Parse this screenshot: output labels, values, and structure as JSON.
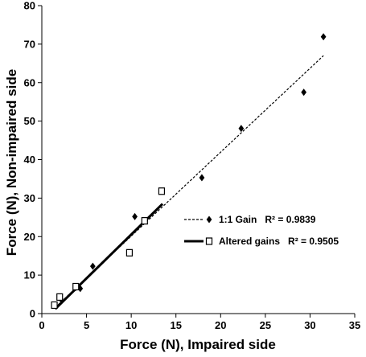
{
  "chart_data": {
    "type": "scatter",
    "title": "",
    "xlabel": "Force (N), Impaired side",
    "ylabel": "Force (N), Non-impaired side",
    "xlim": [
      0,
      35
    ],
    "ylim": [
      0,
      80
    ],
    "xticks": [
      0,
      5,
      10,
      15,
      20,
      25,
      30,
      35
    ],
    "yticks": [
      0,
      10,
      20,
      30,
      40,
      50,
      60,
      70,
      80
    ],
    "grid": false,
    "legend_position": "center-right",
    "series": [
      {
        "name": "1:1 Gain",
        "marker": "diamond",
        "color": "#000000",
        "trendline": {
          "style": "dashed",
          "x_range": [
            1.5,
            31.5
          ],
          "y_range": [
            1.6,
            67
          ],
          "r2_label": "R² = 0.9839"
        },
        "points": [
          {
            "x": 1.5,
            "y": 2.2
          },
          {
            "x": 2.1,
            "y": 3.8
          },
          {
            "x": 3.8,
            "y": 6.8
          },
          {
            "x": 4.3,
            "y": 6.5
          },
          {
            "x": 5.7,
            "y": 12.3
          },
          {
            "x": 10.4,
            "y": 25.2
          },
          {
            "x": 17.9,
            "y": 35.3
          },
          {
            "x": 22.3,
            "y": 48.1
          },
          {
            "x": 29.3,
            "y": 57.5
          },
          {
            "x": 31.5,
            "y": 71.9
          }
        ]
      },
      {
        "name": "Altered gains",
        "marker": "square-open",
        "color": "#000000",
        "trendline": {
          "style": "solid",
          "x_range": [
            1.5,
            13.5
          ],
          "y_range": [
            1.2,
            28.5
          ],
          "r2_label": "R² = 0.9505"
        },
        "points": [
          {
            "x": 1.4,
            "y": 2.2
          },
          {
            "x": 2.0,
            "y": 4.3
          },
          {
            "x": 3.8,
            "y": 7.0
          },
          {
            "x": 9.8,
            "y": 15.8
          },
          {
            "x": 11.5,
            "y": 24.1
          },
          {
            "x": 13.4,
            "y": 31.8
          }
        ]
      }
    ]
  }
}
